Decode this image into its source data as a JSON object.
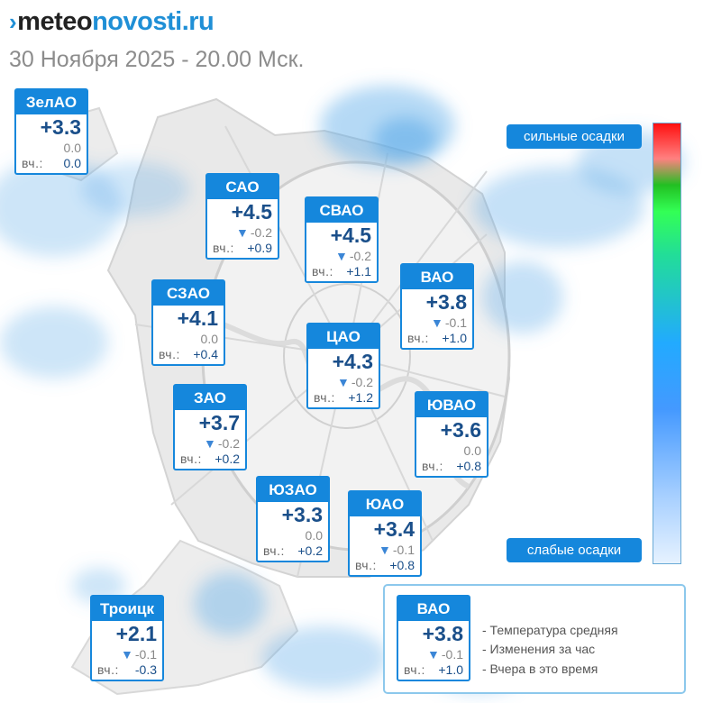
{
  "header": {
    "logo_prefix": "meteo",
    "logo_suffix": "novosti.ru",
    "subtitle": "30 Ноября 2025 - 20.00 Мск."
  },
  "colors": {
    "accent": "#1587dc",
    "temp_text": "#1a4f8a",
    "precip_cloud": "#5aaae8"
  },
  "icons": {
    "logo_mark": "chevron-logo-icon",
    "change_arrow": "triangle-down-icon"
  },
  "yesterday_label": "вч.:",
  "districts": [
    {
      "id": "zelao",
      "name": "ЗелАО",
      "temp": "+3.3",
      "change": "0.0",
      "change_arrow": false,
      "yesterday": "0.0"
    },
    {
      "id": "sao",
      "name": "САО",
      "temp": "+4.5",
      "change": "-0.2",
      "change_arrow": true,
      "yesterday": "+0.9"
    },
    {
      "id": "svao",
      "name": "СВАО",
      "temp": "+4.5",
      "change": "-0.2",
      "change_arrow": true,
      "yesterday": "+1.1"
    },
    {
      "id": "szao",
      "name": "СЗАО",
      "temp": "+4.1",
      "change": "0.0",
      "change_arrow": false,
      "yesterday": "+0.4"
    },
    {
      "id": "vao",
      "name": "ВАО",
      "temp": "+3.8",
      "change": "-0.1",
      "change_arrow": true,
      "yesterday": "+1.0"
    },
    {
      "id": "cao",
      "name": "ЦАО",
      "temp": "+4.3",
      "change": "-0.2",
      "change_arrow": true,
      "yesterday": "+1.2"
    },
    {
      "id": "zao",
      "name": "ЗАО",
      "temp": "+3.7",
      "change": "-0.2",
      "change_arrow": true,
      "yesterday": "+0.2"
    },
    {
      "id": "yuvao",
      "name": "ЮВАО",
      "temp": "+3.6",
      "change": "0.0",
      "change_arrow": false,
      "yesterday": "+0.8"
    },
    {
      "id": "yuzao",
      "name": "ЮЗАО",
      "temp": "+3.3",
      "change": "0.0",
      "change_arrow": false,
      "yesterday": "+0.2"
    },
    {
      "id": "yuao",
      "name": "ЮАО",
      "temp": "+3.4",
      "change": "-0.1",
      "change_arrow": true,
      "yesterday": "+0.8"
    },
    {
      "id": "troick",
      "name": "Троицк",
      "temp": "+2.1",
      "change": "-0.1",
      "change_arrow": true,
      "yesterday": "-0.3"
    }
  ],
  "scale": {
    "top_label": "сильные осадки",
    "bottom_label": "слабые осадки"
  },
  "legend": {
    "sample": {
      "name": "ВАО",
      "temp": "+3.8",
      "change": "-0.1",
      "change_arrow": true,
      "yesterday": "+1.0"
    },
    "items": [
      "- Температура средняя",
      "- Изменения за час",
      "- Вчера в это время"
    ]
  }
}
